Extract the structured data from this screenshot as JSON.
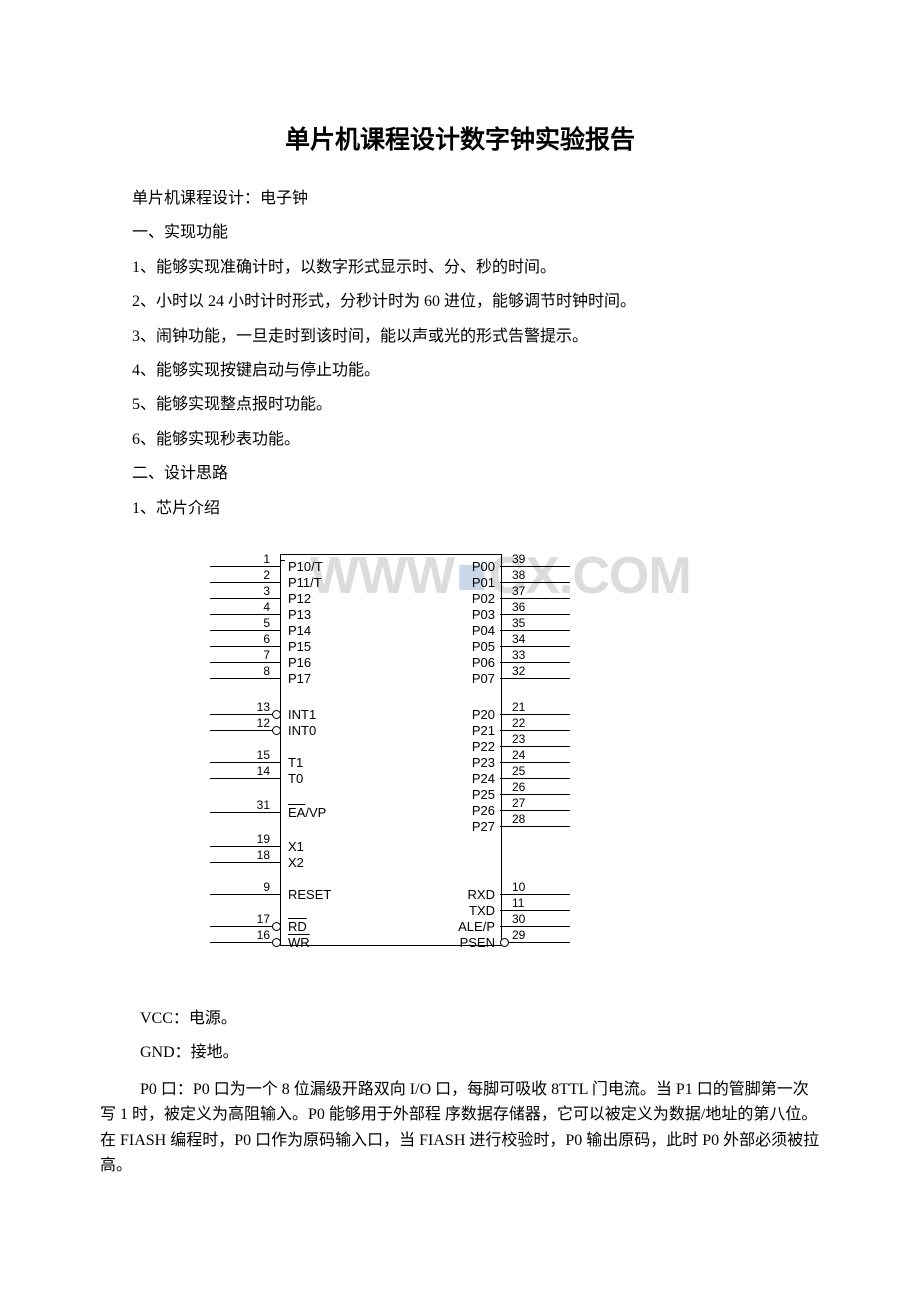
{
  "title": "单片机课程设计数字钟实验报告",
  "lines": {
    "l1": "单片机课程设计：电子钟",
    "l2": "一、实现功能",
    "l3": "1、能够实现准确计时，以数字形式显示时、分、秒的时间。",
    "l4": "2、小时以 24 小时计时形式，分秒计时为 60 进位，能够调节时钟时间。",
    "l5": "3、闹钟功能，一旦走时到该时间，能以声或光的形式告警提示。",
    "l6": "4、能够实现按键启动与停止功能。",
    "l7": "5、能够实现整点报时功能。",
    "l8": "6、能够实现秒表功能。",
    "l9": "二、设计思路",
    "l10": "1、芯片介绍"
  },
  "watermark_left": "WWW",
  "watermark_right": "CX.COM",
  "chip": {
    "left_group1": [
      {
        "num": "1",
        "lbl": "P10/T"
      },
      {
        "num": "2",
        "lbl": "P11/T"
      },
      {
        "num": "3",
        "lbl": "P12"
      },
      {
        "num": "4",
        "lbl": "P13"
      },
      {
        "num": "5",
        "lbl": "P14"
      },
      {
        "num": "6",
        "lbl": "P15"
      },
      {
        "num": "7",
        "lbl": "P16"
      },
      {
        "num": "8",
        "lbl": "P17"
      }
    ],
    "left_group2": [
      {
        "num": "13",
        "lbl": "INT1",
        "bubble": true
      },
      {
        "num": "12",
        "lbl": "INT0",
        "bubble": true
      }
    ],
    "left_group3": [
      {
        "num": "15",
        "lbl": "T1"
      },
      {
        "num": "14",
        "lbl": "T0"
      }
    ],
    "left_group4": [
      {
        "num": "31",
        "lbl": "EA/VP",
        "overline": "EA"
      }
    ],
    "left_group5": [
      {
        "num": "19",
        "lbl": "X1"
      },
      {
        "num": "18",
        "lbl": "X2"
      }
    ],
    "left_group6": [
      {
        "num": "9",
        "lbl": "RESET"
      }
    ],
    "left_group7": [
      {
        "num": "17",
        "lbl": "RD",
        "bubble": true,
        "over": true
      },
      {
        "num": "16",
        "lbl": "WR",
        "bubble": true,
        "over": true
      }
    ],
    "right_group1": [
      {
        "num": "39",
        "lbl": "P00"
      },
      {
        "num": "38",
        "lbl": "P01"
      },
      {
        "num": "37",
        "lbl": "P02"
      },
      {
        "num": "36",
        "lbl": "P03"
      },
      {
        "num": "35",
        "lbl": "P04"
      },
      {
        "num": "34",
        "lbl": "P05"
      },
      {
        "num": "33",
        "lbl": "P06"
      },
      {
        "num": "32",
        "lbl": "P07"
      }
    ],
    "right_group2": [
      {
        "num": "21",
        "lbl": "P20"
      },
      {
        "num": "22",
        "lbl": "P21"
      },
      {
        "num": "23",
        "lbl": "P22"
      },
      {
        "num": "24",
        "lbl": "P23"
      },
      {
        "num": "25",
        "lbl": "P24"
      },
      {
        "num": "26",
        "lbl": "P25"
      },
      {
        "num": "27",
        "lbl": "P26"
      },
      {
        "num": "28",
        "lbl": "P27"
      }
    ],
    "right_group3": [
      {
        "num": "10",
        "lbl": "RXD"
      },
      {
        "num": "11",
        "lbl": "TXD"
      },
      {
        "num": "30",
        "lbl": "ALE/P"
      },
      {
        "num": "29",
        "lbl": "PSEN",
        "bubble": true
      }
    ]
  },
  "para_vcc": "VCC：电源。",
  "para_gnd": "GND：接地。",
  "para_p0": "P0 口：P0 口为一个 8 位漏级开路双向 I/O 口，每脚可吸收 8TTL 门电流。当 P1 口的管脚第一次写 1 时，被定义为高阻输入。P0 能够用于外部程 序数据存储器，它可以被定义为数据/地址的第八位。在 FIASH 编程时，P0 口作为原码输入口，当 FIASH 进行校验时，P0 输出原码，此时 P0 外部必须被拉高。"
}
